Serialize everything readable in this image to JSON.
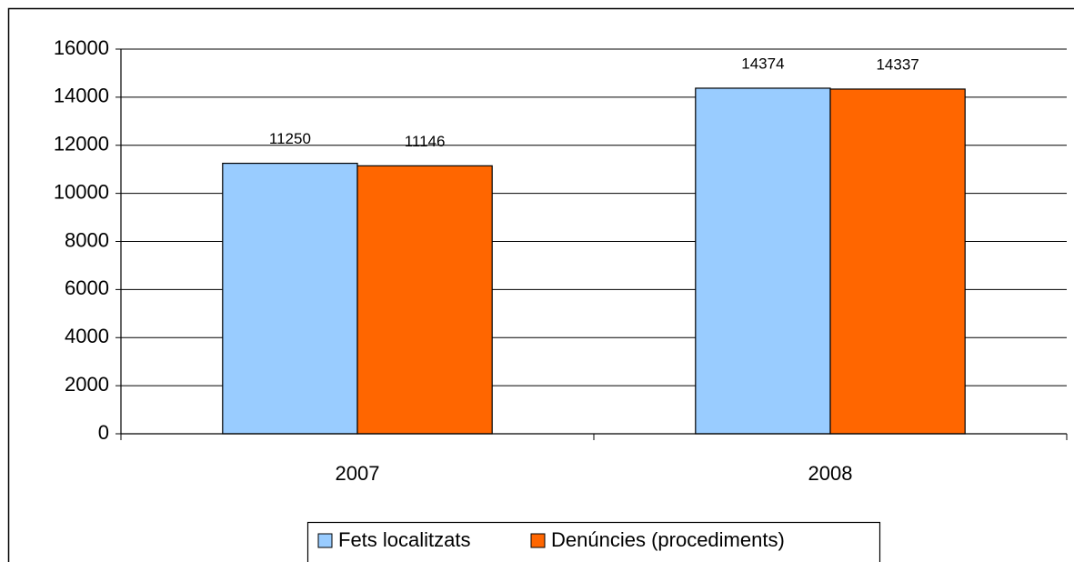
{
  "chart_data": {
    "type": "bar",
    "categories": [
      "2007",
      "2008"
    ],
    "series": [
      {
        "name": "Fets localitzats",
        "color": "#99ccff",
        "values": [
          11250,
          14374
        ]
      },
      {
        "name": "Denúncies (procediments)",
        "color": "#ff6600",
        "values": [
          11146,
          14337
        ]
      }
    ],
    "ylim": [
      0,
      16000
    ],
    "yticks": [
      0,
      2000,
      4000,
      6000,
      8000,
      10000,
      12000,
      14000,
      16000
    ],
    "grid": true,
    "legend": "bottom"
  }
}
